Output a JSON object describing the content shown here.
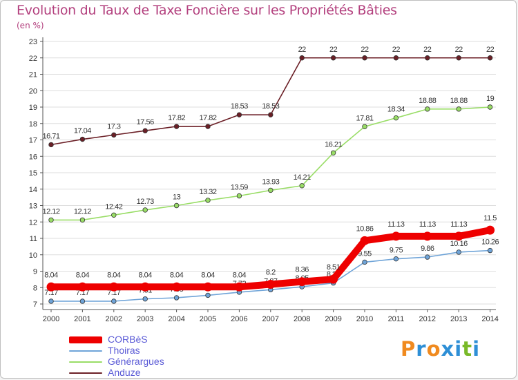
{
  "header": {
    "title": "Evolution du Taux de Taxe Foncière sur les Propriétés Bâties",
    "unit": "(en %)"
  },
  "colors": {
    "title": "#b3407e",
    "grid": "#dddddd",
    "axis": "#555555",
    "legend_text": "#5a5ad6"
  },
  "brand": {
    "letters": [
      "P",
      "r",
      "o",
      "x",
      "i",
      "t",
      "i"
    ],
    "letter_colors": [
      "#f08a1f",
      "#2e8fd6",
      "#f08a1f",
      "#2e8fd6",
      "#2e8fd6",
      "#79b928",
      "#2e8fd6"
    ]
  },
  "chart_data": {
    "type": "line",
    "title": "Evolution du Taux de Taxe Foncière sur les Propriétés Bâties",
    "ylabel": "(en %)",
    "xlabel": "",
    "x": [
      "2000",
      "2001",
      "2002",
      "2003",
      "2004",
      "2005",
      "2006",
      "2007",
      "2008",
      "2009",
      "2010",
      "2011",
      "2012",
      "2013",
      "2014"
    ],
    "ylim": [
      7,
      23
    ],
    "yticks": [
      "7",
      "8",
      "9",
      "10",
      "11",
      "12",
      "13",
      "14",
      "15",
      "16",
      "17",
      "18",
      "19",
      "20",
      "21",
      "22",
      "23"
    ],
    "grid": "horizontal",
    "series": [
      {
        "name": "Anduze",
        "color": "#6b1f26",
        "values": [
          16.71,
          17.04,
          17.3,
          17.56,
          17.82,
          17.82,
          18.53,
          18.53,
          22,
          22,
          22,
          22,
          22,
          22,
          22
        ],
        "labels": [
          "16.71",
          "17.04",
          "17.3",
          "17.56",
          "17.82",
          "17.82",
          "18.53",
          "18.53",
          "22",
          "22",
          "22",
          "22",
          "22",
          "22",
          "22"
        ]
      },
      {
        "name": "Générargues",
        "color": "#99dd66",
        "values": [
          12.12,
          12.12,
          12.42,
          12.73,
          13,
          13.32,
          13.59,
          13.93,
          14.21,
          16.21,
          17.81,
          18.34,
          18.88,
          18.88,
          19
        ],
        "labels": [
          "12.12",
          "12.12",
          "12.42",
          "12.73",
          "13",
          "13.32",
          "13.59",
          "13.93",
          "14.21",
          "16.21",
          "17.81",
          "18.34",
          "18.88",
          "18.88",
          "19"
        ]
      },
      {
        "name": "Thoiras",
        "color": "#6fa4d8",
        "values": [
          7.17,
          7.17,
          7.17,
          7.31,
          7.38,
          7.53,
          7.72,
          7.87,
          8.05,
          8.28,
          9.55,
          9.75,
          9.86,
          10.16,
          10.26
        ],
        "labels": [
          "7.17",
          "7.17",
          "7.17",
          "7.31",
          "7.38",
          "7.53",
          "7.72",
          "7.87",
          "8.05",
          "8.28",
          "9.55",
          "9.75",
          "9.86",
          "10.16",
          "10.26"
        ]
      },
      {
        "name": "CORBèS",
        "color": "#ee0000",
        "values": [
          8.04,
          8.04,
          8.04,
          8.04,
          8.04,
          8.04,
          8.04,
          8.2,
          8.36,
          8.51,
          10.86,
          11.13,
          11.13,
          11.13,
          11.5
        ],
        "labels": [
          "8.04",
          "8.04",
          "8.04",
          "8.04",
          "8.04",
          "8.04",
          "8.04",
          "8.2",
          "8.36",
          "8.51",
          "10.86",
          "11.13",
          "11.13",
          "11.13",
          "11.5"
        ]
      }
    ],
    "legend": [
      "CORBèS",
      "Thoiras",
      "Générargues",
      "Anduze"
    ],
    "legend_position": "bottom-left"
  }
}
